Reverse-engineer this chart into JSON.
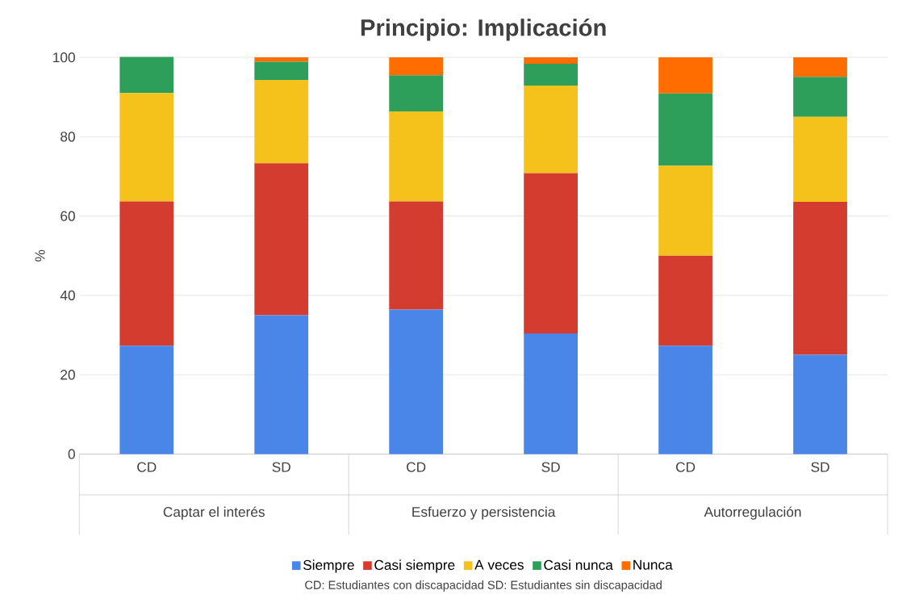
{
  "chart_data": {
    "type": "bar",
    "stacked": true,
    "title": "Principio: Implicación",
    "ylabel": "%",
    "categories": [
      "CD",
      "SD",
      "CD",
      "SD",
      "CD",
      "SD"
    ],
    "series": [
      {
        "name": "Siempre",
        "color": "#4a86e8",
        "values": [
          27.3,
          35,
          36.4,
          30.4,
          27.3,
          25
        ]
      },
      {
        "name": "Casi siempre",
        "color": "#d33c2f",
        "values": [
          36.4,
          38.3,
          27.3,
          40.4,
          22.7,
          38.6
        ]
      },
      {
        "name": "A veces",
        "color": "#f4c21a",
        "values": [
          27.3,
          21,
          22.7,
          22.1,
          22.7,
          21.4
        ]
      },
      {
        "name": "Casi nunca",
        "color": "#2e9e5b",
        "values": [
          9.1,
          4.6,
          9.1,
          5.5,
          18.2,
          10.1
        ]
      },
      {
        "name": "Nunca",
        "color": "#ff6d01",
        "values": [
          0,
          1.1,
          4.5,
          1.6,
          9.1,
          4.9
        ]
      }
    ],
    "ylim": [
      0,
      100
    ],
    "yticks": [
      0,
      20,
      40,
      60,
      80,
      100
    ],
    "grid": "y",
    "legend": "bottom",
    "annotations": [
      "Captar el interés",
      "Esfuerzo y persistencia",
      "Autorregulación",
      "CD: Estudiantes  con discapacidad          SD: Estudiantes  sin discapacidad"
    ]
  }
}
